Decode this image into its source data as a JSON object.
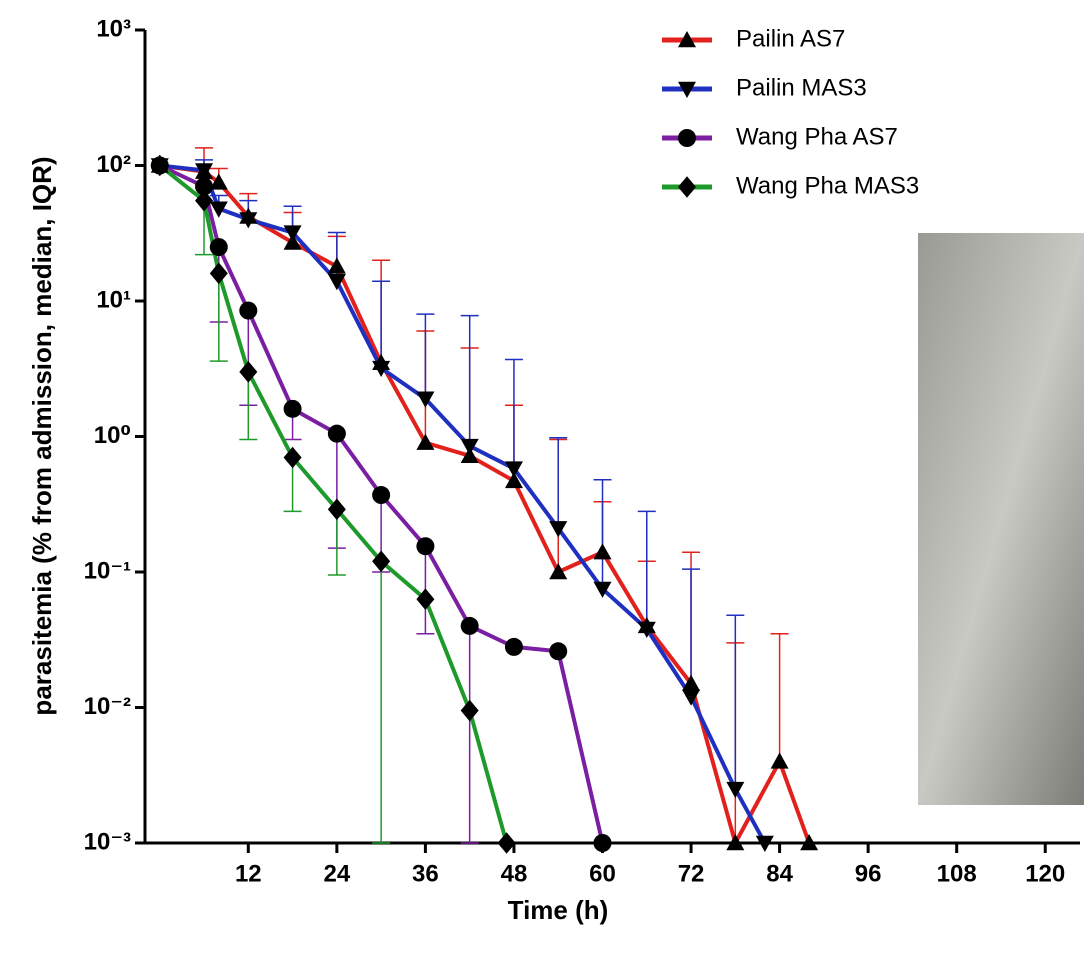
{
  "chart_data": {
    "type": "line",
    "xlabel": "Time (h)",
    "ylabel": "parasitemia (% from admission, median, IQR)",
    "log_y": true,
    "xlim": [
      -2,
      122
    ],
    "xticks": [
      12,
      24,
      36,
      48,
      60,
      72,
      84,
      96,
      108,
      120
    ],
    "ylim": [
      0.001,
      1000
    ],
    "yticks": [
      {
        "value": 0.001,
        "label": "10⁻³"
      },
      {
        "value": 0.01,
        "label": "10⁻²"
      },
      {
        "value": 0.1,
        "label": "10⁻¹"
      },
      {
        "value": 1,
        "label": "10⁰"
      },
      {
        "value": 10,
        "label": "10¹"
      },
      {
        "value": 100,
        "label": "10²"
      },
      {
        "value": 1000,
        "label": "10³"
      }
    ],
    "legend": "upper right",
    "series": [
      {
        "name": "Pailin AS7",
        "color": "#e3211c",
        "marker": "triangle",
        "x": [
          0,
          6,
          8,
          12,
          18,
          24,
          30,
          36,
          42,
          48,
          54,
          60,
          66,
          72,
          78,
          84,
          88
        ],
        "values": [
          100,
          90,
          75,
          42,
          27,
          18,
          3.5,
          0.9,
          0.72,
          0.47,
          0.1,
          0.14,
          0.04,
          0.015,
          0.001,
          0.004,
          0.001
        ],
        "error_upper": [
          null,
          135,
          95,
          62,
          45,
          30,
          20,
          6,
          4.5,
          1.7,
          0.95,
          0.33,
          0.12,
          0.14,
          0.03,
          0.035,
          null
        ]
      },
      {
        "name": "Pailin MAS3",
        "color": "#1f2fbf",
        "marker": "triangle-down",
        "x": [
          0,
          6,
          8,
          12,
          18,
          24,
          30,
          36,
          42,
          48,
          54,
          60,
          66,
          72,
          78,
          82
        ],
        "values": [
          100,
          92,
          48,
          40,
          32,
          14,
          3.2,
          1.9,
          0.85,
          0.58,
          0.21,
          0.075,
          0.038,
          0.012,
          0.0025,
          0.001
        ],
        "error_upper": [
          null,
          110,
          60,
          55,
          50,
          32,
          14,
          8,
          7.8,
          3.7,
          0.98,
          0.48,
          0.28,
          0.105,
          0.048,
          null
        ]
      },
      {
        "name": "Wang Pha AS7",
        "color": "#7b1fa2",
        "marker": "circle",
        "x": [
          0,
          6,
          8,
          12,
          18,
          24,
          30,
          36,
          42,
          48,
          54,
          60
        ],
        "values": [
          100,
          70,
          25,
          8.5,
          1.6,
          1.05,
          0.37,
          0.155,
          0.04,
          0.028,
          0.026,
          0.001
        ],
        "error_lower": [
          null,
          null,
          7,
          1.7,
          0.95,
          0.15,
          0.1,
          0.035,
          0.001,
          null,
          null,
          null
        ]
      },
      {
        "name": "Wang Pha MAS3",
        "color": "#1e9a2a",
        "marker": "diamond",
        "x": [
          0,
          6,
          8,
          12,
          18,
          24,
          30,
          36,
          42,
          47
        ],
        "values": [
          100,
          55,
          16,
          3,
          0.7,
          0.29,
          0.12,
          0.063,
          0.0095,
          0.001
        ],
        "error_lower": [
          null,
          22,
          3.6,
          0.95,
          0.28,
          0.095,
          0.001,
          null,
          null,
          null
        ]
      }
    ]
  }
}
